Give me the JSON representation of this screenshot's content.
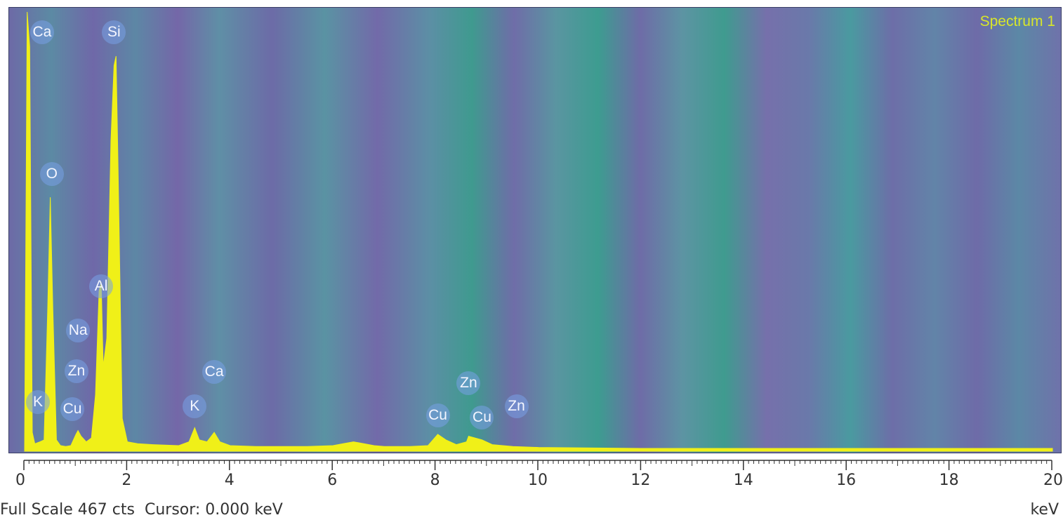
{
  "chart_data": {
    "type": "area",
    "title": "Spectrum 1",
    "xlabel": "keV",
    "ylabel": "",
    "xlim": [
      0,
      20
    ],
    "ylim": [
      0,
      467
    ],
    "grid": false,
    "x_ticks": [
      0,
      2,
      4,
      6,
      8,
      10,
      12,
      14,
      16,
      18,
      20
    ],
    "series": [
      {
        "x": [
          0.0,
          0.05,
          0.1,
          0.15,
          0.2,
          0.3,
          0.38,
          0.45,
          0.5,
          0.55,
          0.62,
          0.7,
          0.8,
          0.9,
          1.0,
          1.04,
          1.1,
          1.2,
          1.3,
          1.38,
          1.45,
          1.49,
          1.53,
          1.6,
          1.68,
          1.74,
          1.78,
          1.82,
          1.9,
          2.0,
          2.2,
          2.5,
          3.0,
          3.2,
          3.31,
          3.4,
          3.55,
          3.69,
          3.8,
          4.0,
          4.5,
          5.0,
          5.5,
          6.0,
          6.2,
          6.4,
          6.6,
          6.8,
          7.0,
          7.5,
          7.85,
          8.04,
          8.2,
          8.4,
          8.6,
          8.64,
          8.9,
          9.1,
          9.5,
          10.0,
          12.0,
          14.0,
          16.0,
          18.0,
          20.0
        ],
        "values": [
          0,
          467,
          430,
          20,
          8,
          10,
          12,
          150,
          270,
          150,
          12,
          6,
          5,
          6,
          18,
          22,
          16,
          10,
          14,
          60,
          170,
          180,
          90,
          120,
          330,
          410,
          420,
          300,
          35,
          10,
          8,
          7,
          6,
          10,
          25,
          12,
          10,
          20,
          10,
          6,
          5,
          5,
          5,
          6,
          8,
          10,
          8,
          6,
          5,
          5,
          6,
          18,
          12,
          7,
          10,
          16,
          12,
          7,
          5,
          4,
          3,
          3,
          3,
          3,
          3
        ]
      }
    ],
    "peak_labels": [
      {
        "text": "Ca",
        "x": 0.34,
        "y": 445
      },
      {
        "text": "Si",
        "x": 1.74,
        "y": 445
      },
      {
        "text": "O",
        "x": 0.53,
        "y": 295
      },
      {
        "text": "Al",
        "x": 1.49,
        "y": 175
      },
      {
        "text": "Na",
        "x": 1.04,
        "y": 128
      },
      {
        "text": "Zn",
        "x": 1.01,
        "y": 85
      },
      {
        "text": "K",
        "x": 0.26,
        "y": 52
      },
      {
        "text": "Cu",
        "x": 0.93,
        "y": 45
      },
      {
        "text": "K",
        "x": 3.31,
        "y": 48
      },
      {
        "text": "Ca",
        "x": 3.69,
        "y": 84
      },
      {
        "text": "Zn",
        "x": 8.64,
        "y": 72
      },
      {
        "text": "Cu",
        "x": 8.04,
        "y": 38
      },
      {
        "text": "Cu",
        "x": 8.9,
        "y": 36
      },
      {
        "text": "Zn",
        "x": 9.57,
        "y": 48
      }
    ],
    "full_scale_text": "Full Scale 467 cts",
    "cursor_text": "Cursor: 0.000 keV",
    "unit": "keV",
    "colors": {
      "spectrum": "#f0f018",
      "label_bubble": "#7aa3e6",
      "title": "#d8e62a"
    }
  }
}
